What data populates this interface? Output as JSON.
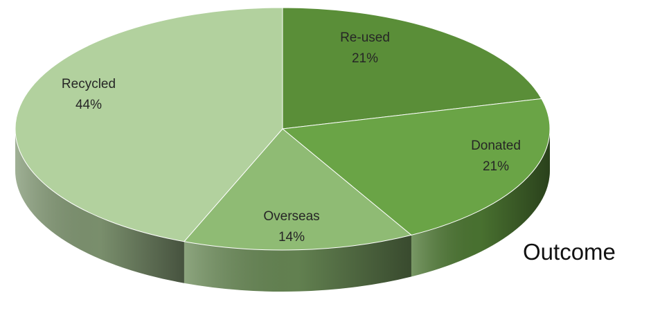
{
  "chart_data": {
    "type": "pie",
    "style": "3d",
    "slices": [
      {
        "name": "Re-used",
        "pct_label": "21%",
        "value": 21,
        "color": "#5a8e38"
      },
      {
        "name": "Donated",
        "pct_label": "21%",
        "value": 21,
        "color": "#6aa446"
      },
      {
        "name": "Overseas",
        "pct_label": "14%",
        "value": 14,
        "color": "#8fbb74"
      },
      {
        "name": "Recycled",
        "pct_label": "44%",
        "value": 44,
        "color": "#b2d19e"
      }
    ],
    "legend_title": "Outcome"
  }
}
